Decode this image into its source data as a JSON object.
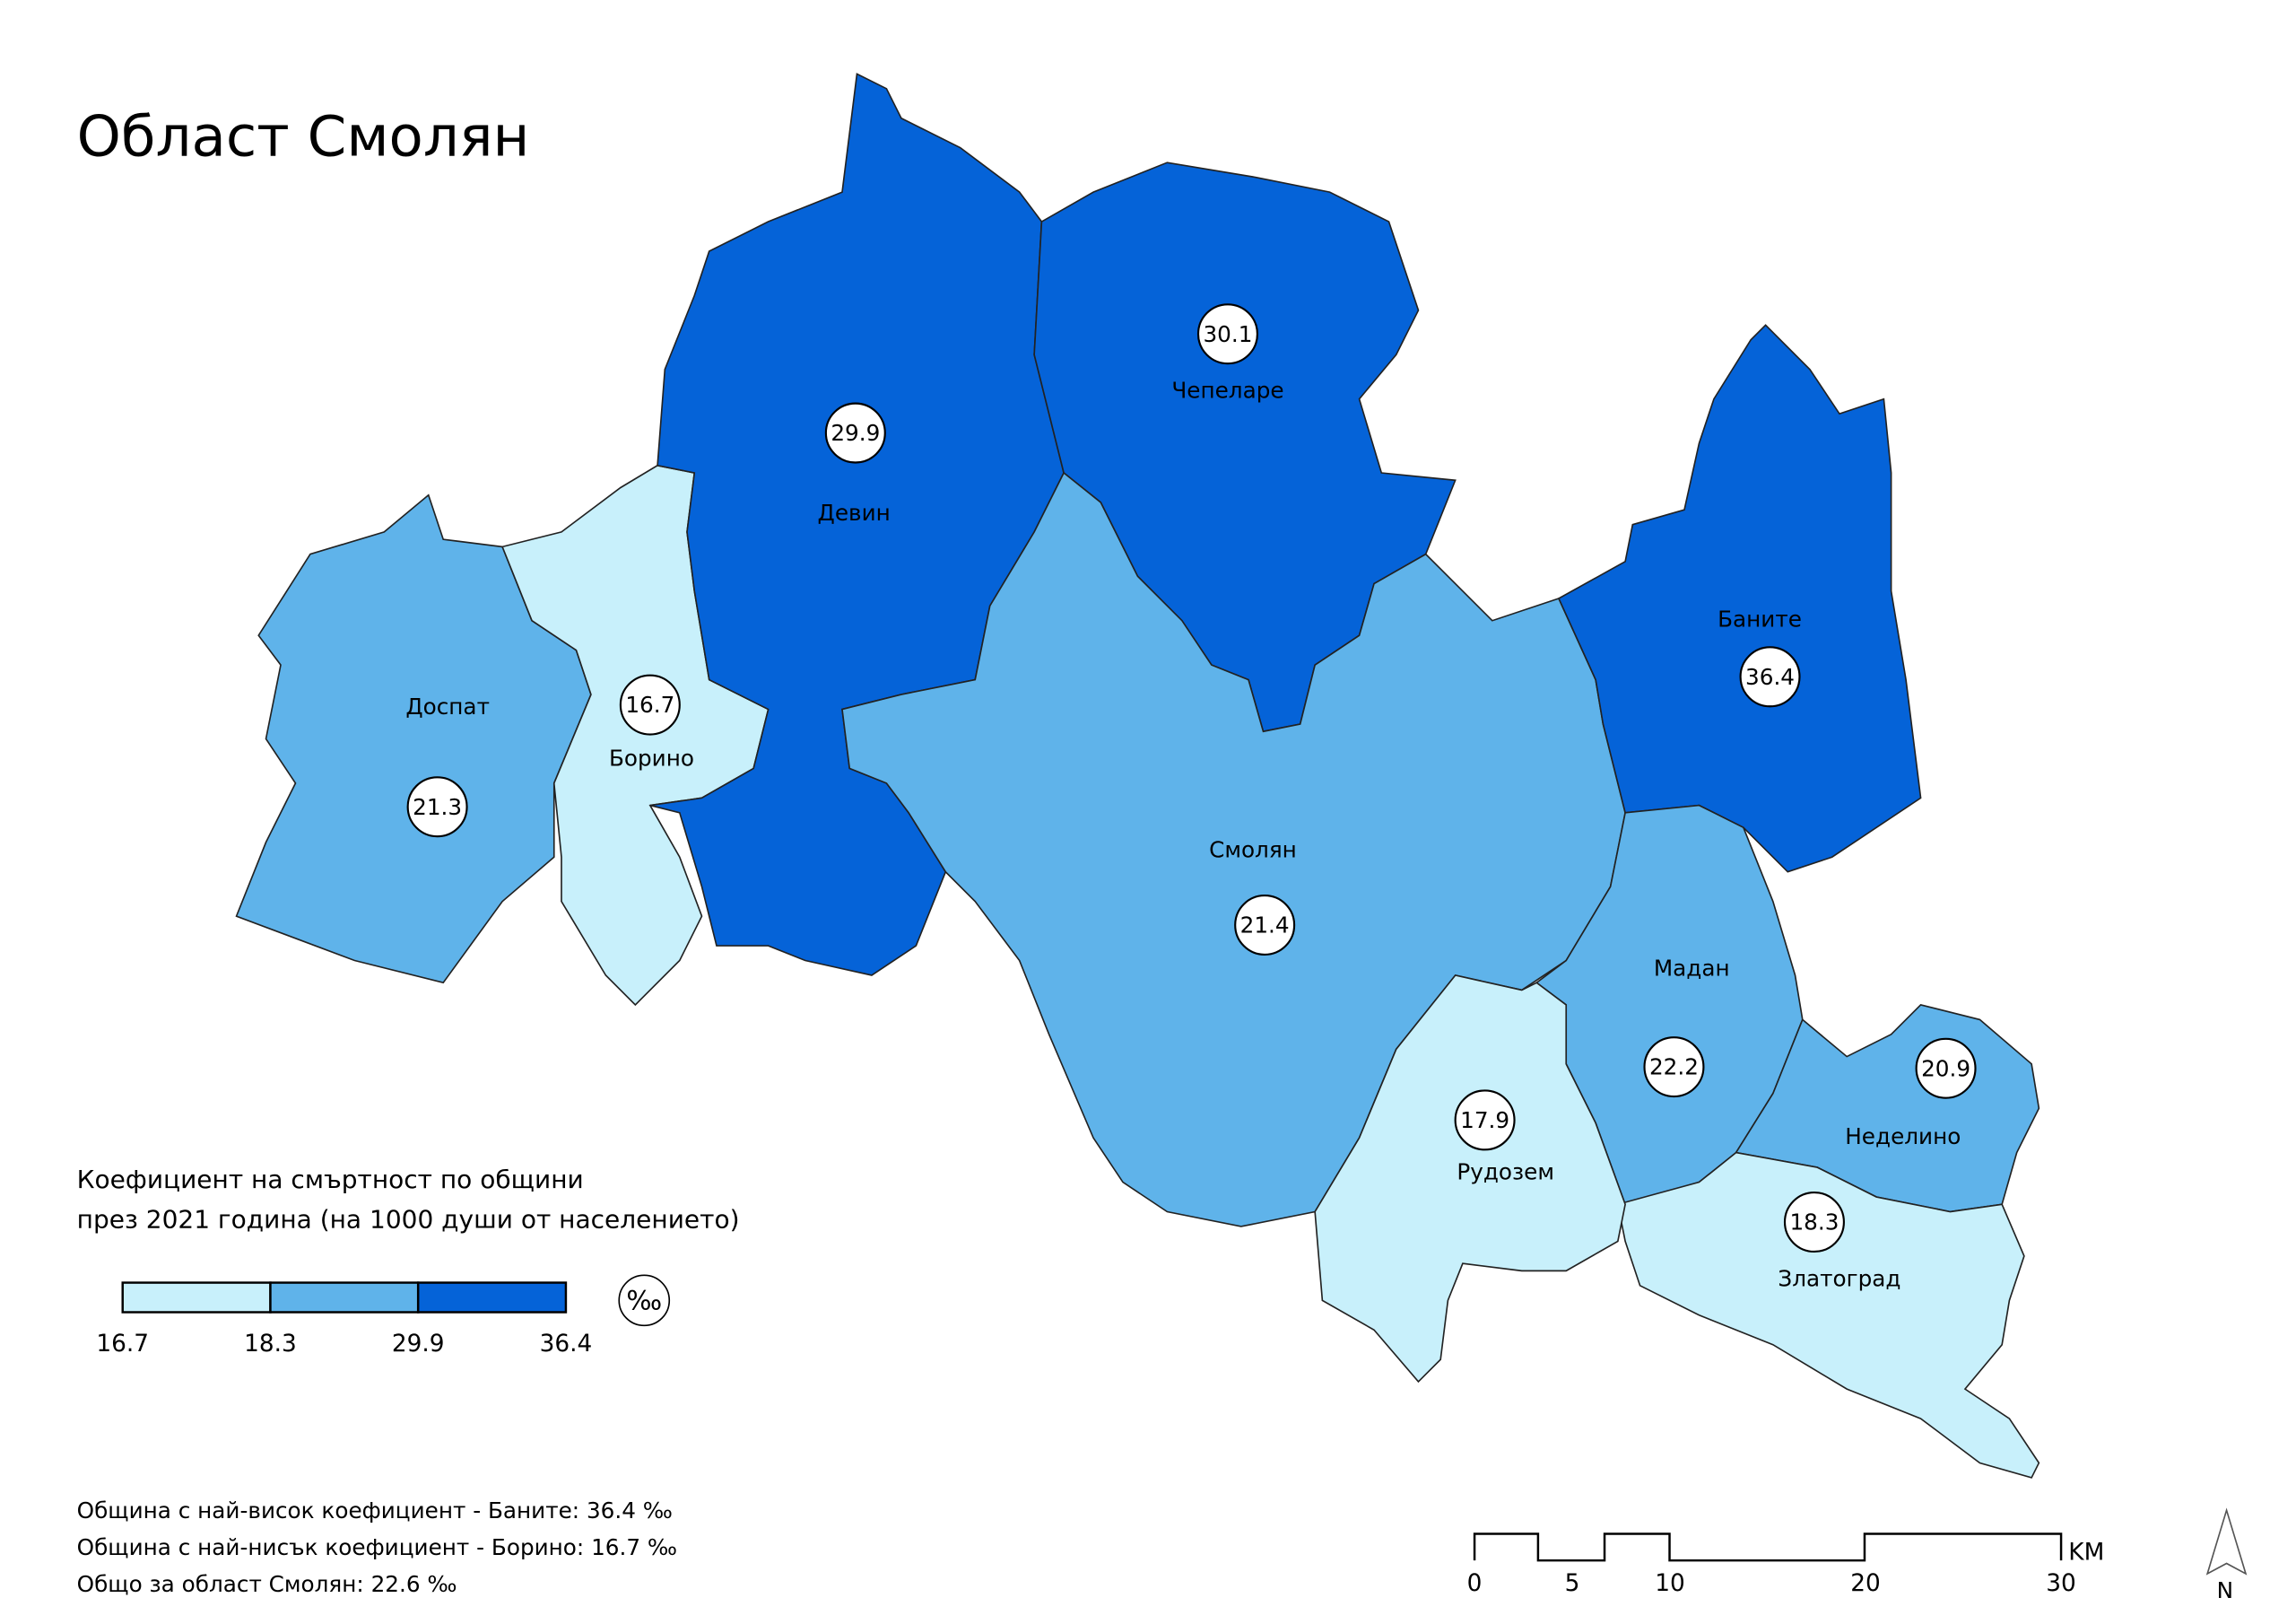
{
  "title": "Област Смолян",
  "regions": [
    {
      "name": "Доспат",
      "value": 21.3,
      "color": "#5fb3ea"
    },
    {
      "name": "Борино",
      "value": 16.7,
      "color": "#c8f0fb"
    },
    {
      "name": "Девин",
      "value": 29.9,
      "color": "#0563d8"
    },
    {
      "name": "Чепеларе",
      "value": 30.1,
      "color": "#0563d8"
    },
    {
      "name": "Смолян",
      "value": 21.4,
      "color": "#5fb3ea"
    },
    {
      "name": "Баните",
      "value": 36.4,
      "color": "#0563d8"
    },
    {
      "name": "Мадан",
      "value": 22.2,
      "color": "#5fb3ea"
    },
    {
      "name": "Неделино",
      "value": 20.9,
      "color": "#5fb3ea"
    },
    {
      "name": "Златоград",
      "value": 18.3,
      "color": "#c8f0fb"
    },
    {
      "name": "Рудозем",
      "value": 17.9,
      "color": "#c8f0fb"
    }
  ],
  "legend": {
    "title": [
      "Коефициент на смъртност по общини",
      "през 2021 година (на 1000 души от населението)"
    ],
    "breaks": [
      16.7,
      18.3,
      29.9,
      36.4
    ],
    "colors": [
      "#c8f0fb",
      "#5fb3ea",
      "#0563d8"
    ],
    "unit": "‰"
  },
  "notes": [
    "Община с най-висок коефициент - Баните: 36.4 ‰",
    "Община с най-нисък коефициент - Борино: 16.7 ‰",
    "Общо за област Смолян: 22.6 ‰"
  ],
  "scale_bar": {
    "ticks": [
      0,
      5,
      10,
      20,
      30
    ],
    "unit": "KM"
  },
  "north": "N"
}
